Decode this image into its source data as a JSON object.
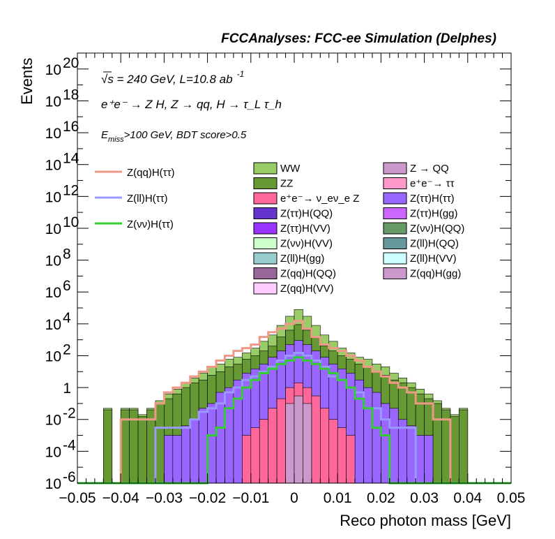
{
  "chart_data": {
    "type": "bar",
    "title": "FCCAnalyses: FCC-ee Simulation (Delphes)",
    "xlabel": "Reco photon mass [GeV]",
    "ylabel": "Events",
    "xlim": [
      -0.05,
      0.05
    ],
    "ylim": [
      1e-06,
      1e+21
    ],
    "log_y": true,
    "stacked": true,
    "annotations": {
      "energy": "√s = 240 GeV, L=10.8 ab",
      "energy_exp": "-1",
      "process": "e⁺e⁻ → Z H, Z → qq, H → τ_L τ_h",
      "cut_pre": "E",
      "cut_sub": "miss",
      "cut_post": ">100 GeV, BDT score>0.5"
    },
    "x_ticks": [
      "−0.05",
      "−0.04",
      "−0.03",
      "−0.02",
      "−0.01",
      "0",
      "0.01",
      "0.02",
      "0.03",
      "0.04",
      "0.05"
    ],
    "x_tick_values": [
      -0.05,
      -0.04,
      -0.03,
      -0.02,
      -0.01,
      0,
      0.01,
      0.02,
      0.03,
      0.04,
      0.05
    ],
    "y_ticks": [
      {
        "label": "10",
        "exp": "20",
        "value": 1e+20
      },
      {
        "label": "10",
        "exp": "18",
        "value": 1e+18
      },
      {
        "label": "10",
        "exp": "16",
        "value": 1e+16
      },
      {
        "label": "10",
        "exp": "14",
        "value": 100000000000000.0
      },
      {
        "label": "10",
        "exp": "12",
        "value": 1000000000000.0
      },
      {
        "label": "10",
        "exp": "10",
        "value": 10000000000.0
      },
      {
        "label": "10",
        "exp": "8",
        "value": 100000000.0
      },
      {
        "label": "10",
        "exp": "6",
        "value": 1000000.0
      },
      {
        "label": "10",
        "exp": "4",
        "value": 10000.0
      },
      {
        "label": "10",
        "exp": "2",
        "value": 100.0
      },
      {
        "label": "1",
        "exp": "",
        "value": 1
      },
      {
        "label": "10",
        "exp": "-2",
        "value": 0.01
      },
      {
        "label": "10",
        "exp": "-4",
        "value": 0.0001
      },
      {
        "label": "10",
        "exp": "-6",
        "value": 1e-06
      }
    ],
    "bin_edges": [
      -0.05,
      -0.048,
      -0.046,
      -0.044,
      -0.042,
      -0.04,
      -0.038,
      -0.036,
      -0.034,
      -0.032,
      -0.03,
      -0.028,
      -0.026,
      -0.024,
      -0.022,
      -0.02,
      -0.018,
      -0.016,
      -0.014,
      -0.012,
      -0.01,
      -0.008,
      -0.006,
      -0.004,
      -0.002,
      0,
      0.002,
      0.004,
      0.006,
      0.008,
      0.01,
      0.012,
      0.014,
      0.016,
      0.018,
      0.02,
      0.022,
      0.024,
      0.026,
      0.028,
      0.03,
      0.032,
      0.034,
      0.036,
      0.038,
      0.04,
      0.042,
      0.044,
      0.046,
      0.048,
      0.05
    ],
    "stack_totals": [
      {
        "name": "WW",
        "color": "#99cc66",
        "values": [
          0,
          0,
          0,
          0.05,
          0,
          0.05,
          0.05,
          0.02,
          0.05,
          0.15,
          0.4,
          0.8,
          2,
          4,
          8,
          20,
          30,
          60,
          80,
          150,
          300,
          800,
          2000,
          8000,
          30000,
          80000,
          30000,
          8000,
          2000,
          800,
          300,
          150,
          80,
          60,
          30,
          20,
          8,
          4,
          2,
          0.8,
          0.4,
          0.15,
          0.05,
          0.02,
          0.05,
          0,
          0,
          0,
          0,
          0
        ]
      },
      {
        "name": "ZZ",
        "color": "#669933",
        "values": [
          0,
          0,
          0,
          0.04,
          0,
          0.04,
          0.04,
          0.015,
          0.04,
          0.1,
          0.2,
          0.4,
          1,
          2,
          3,
          6,
          10,
          20,
          30,
          60,
          100,
          200,
          400,
          1500,
          4000,
          9000,
          4000,
          1500,
          400,
          200,
          100,
          60,
          30,
          20,
          10,
          6,
          3,
          2,
          1,
          0.4,
          0.2,
          0.1,
          0.04,
          0.015,
          0.04,
          0,
          0,
          0,
          0,
          0
        ]
      },
      {
        "name": "Z(ττ)H(ττ) group",
        "color": "#9966ff",
        "values": [
          0,
          0,
          0,
          0,
          0,
          0,
          0,
          0,
          0,
          0,
          0.001,
          0.001,
          0.004,
          0.01,
          0.05,
          0.1,
          0.5,
          1,
          3,
          8,
          15,
          30,
          80,
          200,
          500,
          900,
          500,
          200,
          80,
          30,
          15,
          8,
          3,
          1,
          0.5,
          0.1,
          0.05,
          0.01,
          0.004,
          0.001,
          0.001,
          0,
          0,
          0,
          0,
          0,
          0,
          0,
          0,
          0
        ]
      },
      {
        "name": "e⁺e⁻ → ν_e ν_e Z",
        "color": "#ff6699",
        "values": [
          0,
          0,
          0,
          0,
          0,
          0,
          0,
          0,
          0,
          0,
          0,
          0,
          0,
          0,
          0,
          0,
          0,
          0,
          0,
          0.001,
          0.003,
          0.01,
          0.05,
          0.2,
          1,
          2,
          1,
          0.3,
          0.05,
          0.01,
          0.003,
          0.001,
          0,
          0,
          0,
          0,
          0,
          0,
          0,
          0,
          0,
          0,
          0,
          0,
          0,
          0,
          0,
          0,
          0,
          0
        ]
      },
      {
        "name": "Z → QQ",
        "color": "#cc99cc",
        "values": [
          0,
          0,
          0,
          0,
          0,
          0,
          0,
          0,
          0,
          0,
          0,
          0,
          0,
          0,
          0,
          0,
          0,
          0,
          0,
          0,
          0,
          0,
          0,
          0,
          0.1,
          0.3,
          0.1,
          0,
          0,
          0,
          0,
          0,
          0,
          0,
          0,
          0,
          0,
          0,
          0,
          0,
          0,
          0,
          0,
          0,
          0,
          0,
          0,
          0,
          0,
          0
        ]
      }
    ],
    "series": [
      {
        "name": "Z(qq)H(ττ)",
        "color": "#ee9988",
        "values": [
          0,
          0,
          0,
          0,
          0,
          0.01,
          0.01,
          0.01,
          0.01,
          0.1,
          0.5,
          1,
          2,
          5,
          10,
          20,
          50,
          100,
          200,
          300,
          500,
          1500,
          3000,
          5000,
          10000,
          15000,
          5000,
          1500,
          500,
          300,
          200,
          100,
          50,
          20,
          10,
          5,
          2,
          1,
          0.5,
          0.1,
          0.1,
          0.01,
          0.01,
          0,
          0,
          0,
          0,
          0,
          0,
          0
        ]
      },
      {
        "name": "Z(ll)H(ττ)",
        "color": "#9999ff",
        "values": [
          0,
          0,
          0,
          0,
          0,
          0,
          0,
          0,
          0,
          0.003,
          0.003,
          0.003,
          0.003,
          0.01,
          0.03,
          0.05,
          0.1,
          0.5,
          1,
          3,
          5,
          10,
          20,
          50,
          100,
          150,
          100,
          50,
          20,
          5,
          3,
          1,
          0.5,
          0.05,
          0.05,
          0.01,
          0.003,
          0.003,
          0.003,
          0,
          0,
          0,
          0,
          0,
          0,
          0,
          0,
          0,
          0,
          0
        ]
      },
      {
        "name": "Z(νν)H(ττ)",
        "color": "#33cc33",
        "values": [
          0,
          0,
          0,
          0,
          0,
          0,
          0,
          0,
          0,
          0,
          0,
          0,
          0,
          0,
          0,
          0.001,
          0.003,
          0.05,
          0.2,
          1,
          3,
          8,
          15,
          30,
          50,
          80,
          50,
          30,
          15,
          8,
          3,
          1,
          0.2,
          0.05,
          0.003,
          0.001,
          0,
          0,
          0,
          0,
          0,
          0,
          0,
          0,
          0,
          0,
          0,
          0,
          0,
          0
        ]
      }
    ],
    "legend_lines": [
      {
        "label": "Z(qq)H(ττ)",
        "color": "#ee9988"
      },
      {
        "label": "Z(ll)H(ττ)",
        "color": "#9999ff"
      },
      {
        "label": "Z(νν)H(ττ)",
        "color": "#33cc33"
      }
    ],
    "legend_boxes_col1": [
      {
        "label": "WW",
        "color": "#99cc66"
      },
      {
        "label": "ZZ",
        "color": "#669933"
      },
      {
        "label": "e⁺e⁻→ ν_eν_e Z",
        "color": "#ff6699"
      },
      {
        "label": "Z(ττ)H(QQ)",
        "color": "#6633cc"
      },
      {
        "label": "Z(ττ)H(VV)",
        "color": "#9933ff"
      },
      {
        "label": "Z(νν)H(VV)",
        "color": "#ccffcc"
      },
      {
        "label": "Z(ll)H(gg)",
        "color": "#99cccc"
      },
      {
        "label": "Z(qq)H(QQ)",
        "color": "#996699"
      },
      {
        "label": "Z(qq)H(VV)",
        "color": "#ffccff"
      }
    ],
    "legend_boxes_col2": [
      {
        "label": "Z → QQ",
        "color": "#cc99cc"
      },
      {
        "label": "e⁺e⁻→ ττ",
        "color": "#ff99cc"
      },
      {
        "label": "Z(ττ)H(ττ)",
        "color": "#9966ff"
      },
      {
        "label": "Z(ττ)H(gg)",
        "color": "#cc66ff"
      },
      {
        "label": "Z(νν)H(QQ)",
        "color": "#669966"
      },
      {
        "label": "Z(ll)H(QQ)",
        "color": "#669999"
      },
      {
        "label": "Z(ll)H(VV)",
        "color": "#ccffff"
      },
      {
        "label": "Z(qq)H(gg)",
        "color": "#cc99cc"
      }
    ]
  }
}
